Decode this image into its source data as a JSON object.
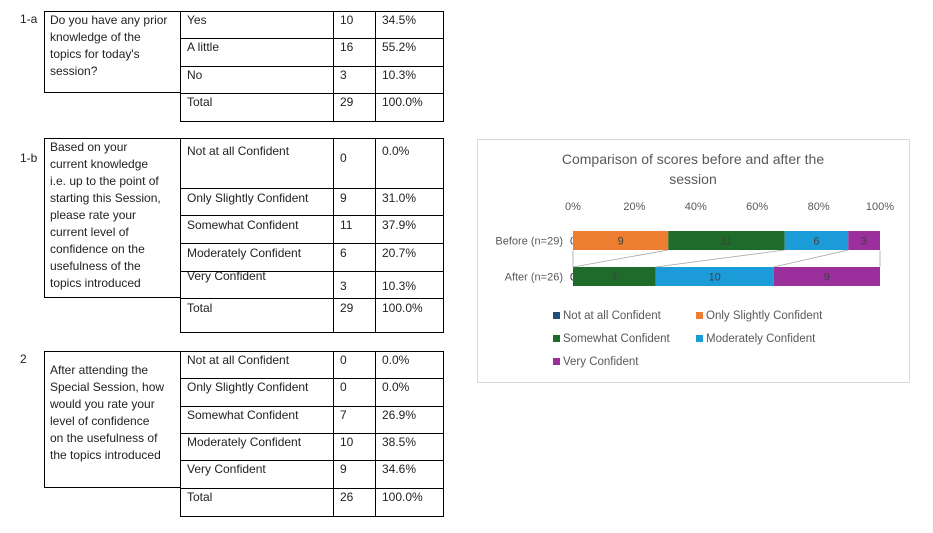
{
  "sections": [
    {
      "id": "1-a",
      "number": "1-a",
      "question": "Do you have any prior\nknowledge of the\ntopics for today's\nsession?",
      "rows": [
        {
          "answer": "Yes",
          "count": "10",
          "percent": "34.5%"
        },
        {
          "answer": "A little",
          "count": "16",
          "percent": "55.2%"
        },
        {
          "answer": "No",
          "count": "3",
          "percent": "10.3%"
        },
        {
          "answer": "Total",
          "count": "29",
          "percent": "100.0%"
        }
      ]
    },
    {
      "id": "1-b",
      "number": "1-b",
      "question": "Based on your\ncurrent knowledge\ni.e. up to the point of\nstarting this Session,\nplease rate your\ncurrent level of\nconfidence on the\nusefulness of the\ntopics introduced",
      "rows": [
        {
          "answer": "Not at all Confident",
          "count": "0",
          "percent": "0.0%"
        },
        {
          "answer": "Only Slightly Confident",
          "count": "9",
          "percent": "31.0%"
        },
        {
          "answer": "Somewhat Confident",
          "count": "11",
          "percent": "37.9%"
        },
        {
          "answer": "Moderately Confident",
          "count": "6",
          "percent": "20.7%"
        },
        {
          "answer": "Very Confident",
          "count": "3",
          "percent": "10.3%"
        },
        {
          "answer": "Total",
          "count": "29",
          "percent": "100.0%"
        }
      ]
    },
    {
      "id": "2",
      "number": "2",
      "question": "After attending the\nSpecial Session, how\nwould you rate your\nlevel of confidence\non the usefulness of\nthe topics introduced",
      "rows": [
        {
          "answer": "Not at all Confident",
          "count": "0",
          "percent": "0.0%"
        },
        {
          "answer": "Only Slightly Confident",
          "count": "0",
          "percent": "0.0%"
        },
        {
          "answer": "Somewhat Confident",
          "count": "7",
          "percent": "26.9%"
        },
        {
          "answer": "Moderately Confident",
          "count": "10",
          "percent": "38.5%"
        },
        {
          "answer": "Very Confident",
          "count": "9",
          "percent": "34.6%"
        },
        {
          "answer": "Total",
          "count": "26",
          "percent": "100.0%"
        }
      ]
    }
  ],
  "chart_data": {
    "type": "bar",
    "orientation": "horizontal",
    "stacking": "percent",
    "title": "Comparison of scores before and after the session",
    "categories": [
      "Before (n=29)",
      "After (n=26)"
    ],
    "x_ticks": [
      "0%",
      "20%",
      "40%",
      "60%",
      "80%",
      "100%"
    ],
    "xlim": [
      0,
      100
    ],
    "series": [
      {
        "name": "Not at all Confident",
        "values": [
          0,
          0
        ],
        "color": "#1f4e79"
      },
      {
        "name": "Only Slightly Confident",
        "values": [
          9,
          0
        ],
        "color": "#ed7d31"
      },
      {
        "name": "Somewhat Confident",
        "values": [
          11,
          7
        ],
        "color": "#1e6b2a"
      },
      {
        "name": "Moderately Confident",
        "values": [
          6,
          10
        ],
        "color": "#1b9bd7"
      },
      {
        "name": "Very Confident",
        "values": [
          3,
          9
        ],
        "color": "#9b2f9b"
      }
    ],
    "series_lines": true,
    "legend_position": "bottom",
    "grid": false
  }
}
